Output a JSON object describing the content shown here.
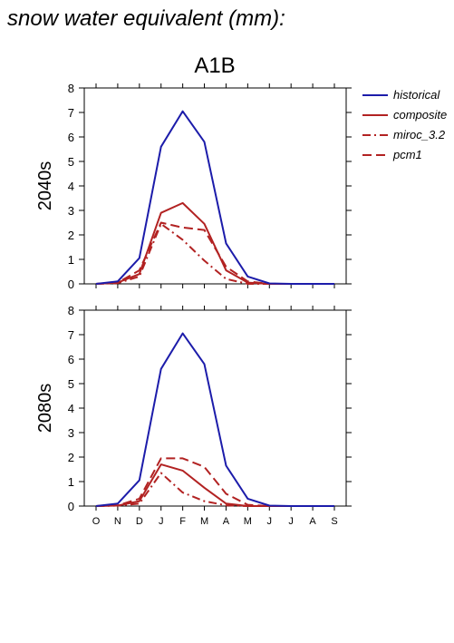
{
  "title": "snow water equivalent (mm):",
  "scenario": "A1B",
  "colors": {
    "historical": "#1c1caa",
    "projection": "#b22222"
  },
  "legend": [
    {
      "label": "historical",
      "style": "solid",
      "color": "#1c1caa"
    },
    {
      "label": "composite",
      "style": "solid",
      "color": "#b22222"
    },
    {
      "label": "miroc_3.2",
      "style": "dashdot",
      "color": "#b22222"
    },
    {
      "label": "pcm1",
      "style": "dashed",
      "color": "#b22222"
    }
  ],
  "chart_data": [
    {
      "type": "line",
      "panel_label": "2040s",
      "categories": [
        "O",
        "N",
        "D",
        "J",
        "F",
        "M",
        "A",
        "M",
        "J",
        "J",
        "A",
        "S"
      ],
      "ylim": [
        0,
        8
      ],
      "yticks": [
        0,
        1,
        2,
        3,
        4,
        5,
        6,
        7,
        8
      ],
      "series": [
        {
          "name": "historical",
          "style": "solid",
          "color": "#1c1caa",
          "values": [
            0,
            0.1,
            1.05,
            5.6,
            7.05,
            5.8,
            1.65,
            0.3,
            0.02,
            0,
            0,
            0
          ]
        },
        {
          "name": "composite",
          "style": "solid",
          "color": "#b22222",
          "values": [
            0,
            0.05,
            0.4,
            2.9,
            3.3,
            2.45,
            0.55,
            0.05,
            0,
            0,
            0,
            0
          ]
        },
        {
          "name": "miroc_3.2",
          "style": "dashdot",
          "color": "#b22222",
          "values": [
            0,
            0.03,
            0.3,
            2.45,
            1.8,
            0.95,
            0.2,
            0,
            0,
            0,
            0,
            0
          ]
        },
        {
          "name": "pcm1",
          "style": "dashed",
          "color": "#b22222",
          "values": [
            0,
            0.05,
            0.55,
            2.5,
            2.3,
            2.2,
            0.7,
            0.1,
            0,
            0,
            0,
            0
          ]
        }
      ]
    },
    {
      "type": "line",
      "panel_label": "2080s",
      "categories": [
        "O",
        "N",
        "D",
        "J",
        "F",
        "M",
        "A",
        "M",
        "J",
        "J",
        "A",
        "S"
      ],
      "ylim": [
        0,
        8
      ],
      "yticks": [
        0,
        1,
        2,
        3,
        4,
        5,
        6,
        7,
        8
      ],
      "series": [
        {
          "name": "historical",
          "style": "solid",
          "color": "#1c1caa",
          "values": [
            0,
            0.1,
            1.05,
            5.6,
            7.05,
            5.8,
            1.65,
            0.3,
            0.02,
            0,
            0,
            0
          ]
        },
        {
          "name": "composite",
          "style": "solid",
          "color": "#b22222",
          "values": [
            0,
            0.02,
            0.2,
            1.7,
            1.45,
            0.75,
            0.1,
            0,
            0,
            0,
            0,
            0
          ]
        },
        {
          "name": "miroc_3.2",
          "style": "dashdot",
          "color": "#b22222",
          "values": [
            0,
            0.02,
            0.1,
            1.35,
            0.55,
            0.2,
            0.03,
            0,
            0,
            0,
            0,
            0
          ]
        },
        {
          "name": "pcm1",
          "style": "dashed",
          "color": "#b22222",
          "values": [
            0,
            0.03,
            0.3,
            1.95,
            1.95,
            1.6,
            0.5,
            0.05,
            0,
            0,
            0,
            0
          ]
        }
      ]
    }
  ]
}
